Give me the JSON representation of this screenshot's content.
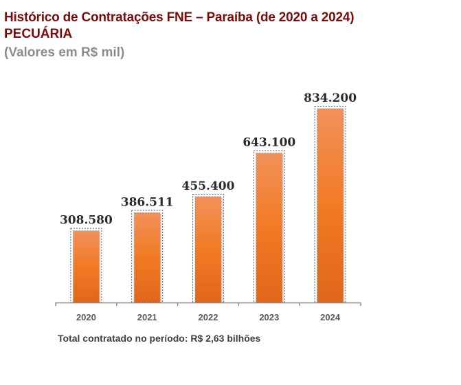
{
  "header": {
    "title": "Histórico de Contratações FNE – Paraíba (de 2020 a 2024)",
    "subtitle": "PECUÁRIA",
    "units": "(Valores em R$ mil)"
  },
  "footer": {
    "text": "Total contratado no período: R$ 2,63 bilhões"
  },
  "colors": {
    "title": "#7A0C0C",
    "bar_top": "#F2915A",
    "bar_mid": "#F27A24",
    "bar_bottom": "#E0661A",
    "axis": "#8C8C8C",
    "value_label": "#2B2B2B",
    "category_label": "#595959"
  },
  "chart_data": {
    "type": "bar",
    "title": "Histórico de Contratações FNE – Paraíba (de 2020 a 2024) PECUÁRIA",
    "subtitle": "(Valores em R$ mil)",
    "categories": [
      "2020",
      "2021",
      "2022",
      "2023",
      "2024"
    ],
    "values": [
      308580,
      386511,
      455400,
      643100,
      834200
    ],
    "value_labels": [
      "308.580",
      "386.511",
      "455.400",
      "643.100",
      "834.200"
    ],
    "xlabel": "",
    "ylabel": "",
    "ylim": [
      0,
      834200
    ],
    "grid": false,
    "legend": "none",
    "annotation": "Total contratado no período: R$ 2,63 bilhões"
  }
}
